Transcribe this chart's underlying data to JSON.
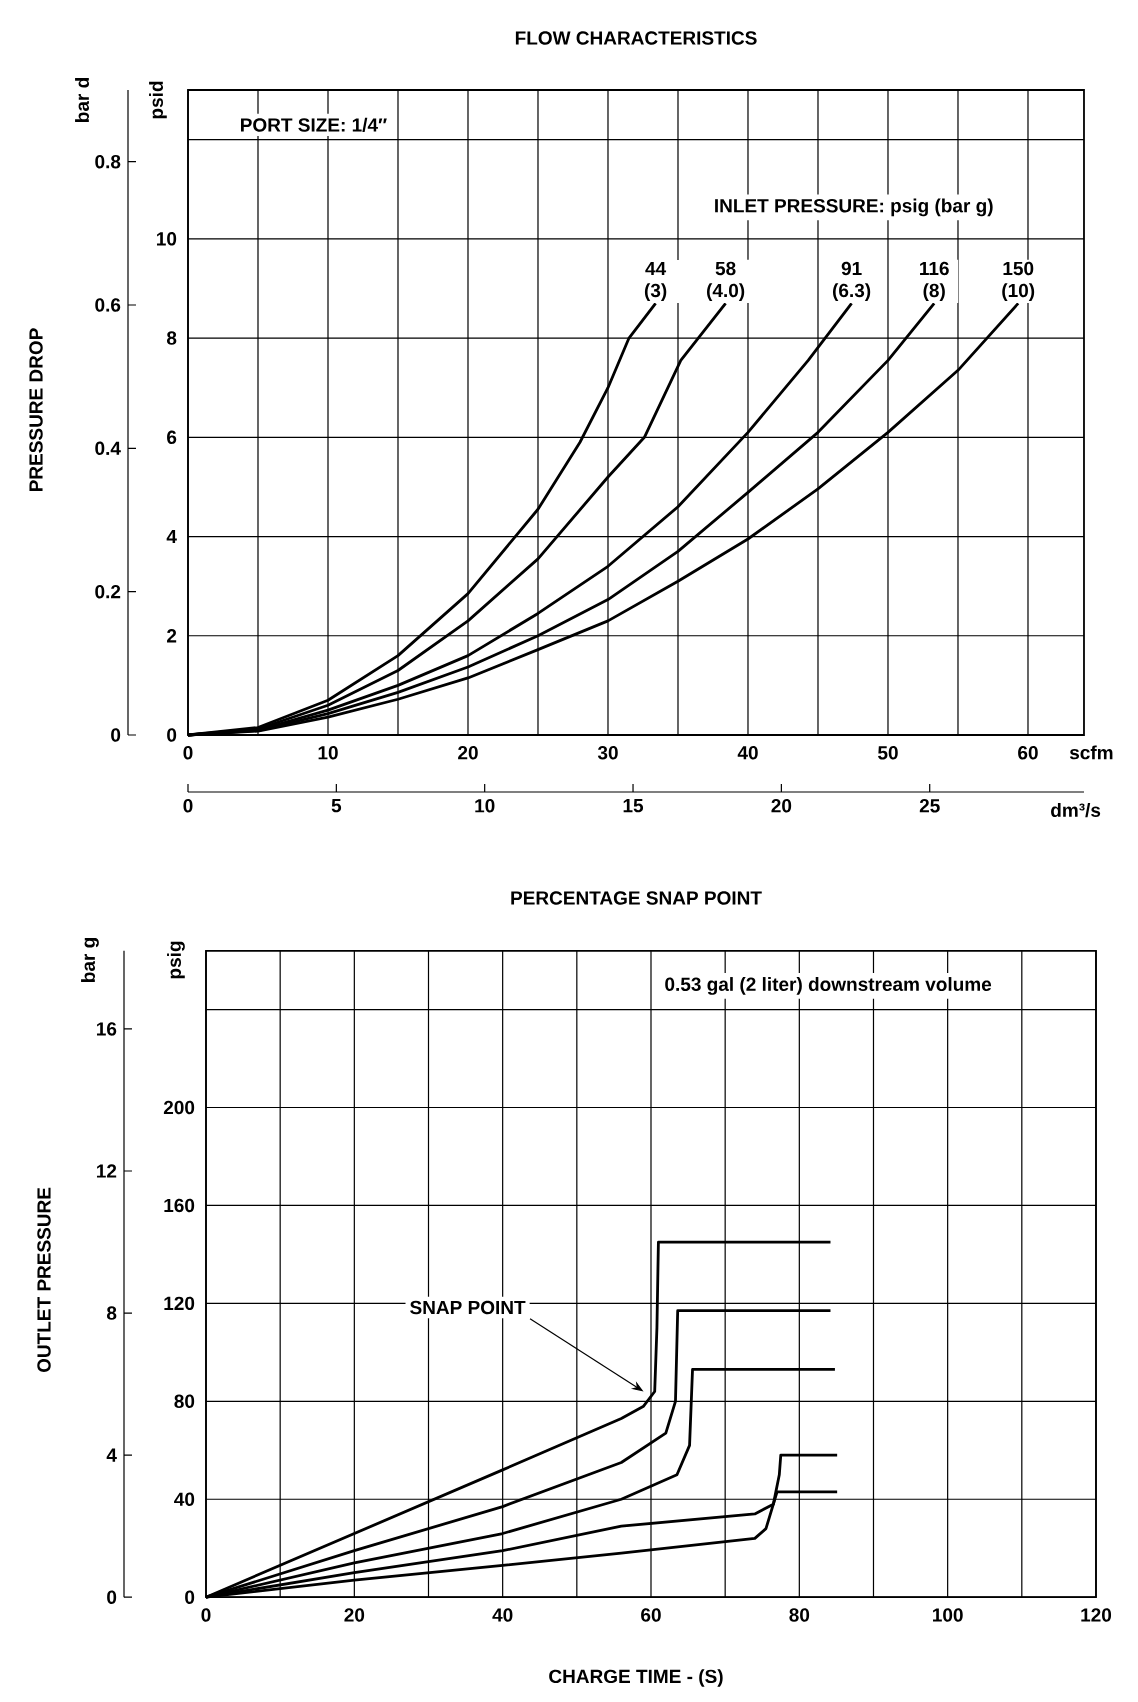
{
  "chart_data": [
    {
      "type": "line",
      "title": "FLOW CHARACTERISTICS",
      "xlabel": "scfm",
      "x2label": "dm³/s",
      "ylabel": "psid",
      "y2label": "bar d",
      "annotations": [
        "PRESSURE DROP",
        "PORT SIZE: 1/4″",
        "INLET PRESSURE: psig (bar g)"
      ],
      "xlim": [
        0,
        64
      ],
      "xticks": [
        0,
        {
          "value": 5,
          "label": null
        },
        10,
        {
          "value": 15,
          "label": null
        },
        20,
        {
          "value": 25,
          "label": null
        },
        30,
        {
          "value": 35,
          "label": null
        },
        40,
        {
          "value": 45,
          "label": null
        },
        50,
        {
          "value": 55,
          "label": null
        },
        60
      ],
      "x2lim": [
        0,
        30.2
      ],
      "x2ticks": [
        0,
        5,
        10,
        15,
        20,
        25
      ],
      "ylim": [
        0,
        13
      ],
      "yticks": [
        0,
        2,
        4,
        6,
        8,
        10,
        {
          "value": 12,
          "label": null
        }
      ],
      "y2lim": [
        0,
        0.9
      ],
      "y2ticks": [
        0,
        0.2,
        0.4,
        0.6,
        0.8
      ],
      "grid": true,
      "series": [
        {
          "name": "44 (3)",
          "color": "#000000",
          "x": [
            0,
            5,
            10,
            15,
            20,
            25,
            28,
            30,
            31.5,
            33.4
          ],
          "values": [
            0,
            0.15,
            0.7,
            1.6,
            2.85,
            4.55,
            5.9,
            7.0,
            8.0,
            8.7
          ]
        },
        {
          "name": "58 (4.0)",
          "color": "#000000",
          "x": [
            0,
            5,
            10,
            15,
            20,
            25,
            30,
            32.6,
            35.2,
            38.4
          ],
          "values": [
            0,
            0.12,
            0.6,
            1.3,
            2.3,
            3.55,
            5.2,
            6.0,
            7.55,
            8.7
          ]
        },
        {
          "name": "91 (6.3)",
          "color": "#000000",
          "x": [
            0,
            5,
            10,
            15,
            20,
            25,
            30,
            35,
            40,
            44.3,
            47.4
          ],
          "values": [
            0,
            0.1,
            0.5,
            1.0,
            1.6,
            2.45,
            3.4,
            4.6,
            6.1,
            7.55,
            8.7
          ]
        },
        {
          "name": "116 (8)",
          "color": "#000000",
          "x": [
            0,
            5,
            10,
            15,
            20,
            25,
            30,
            35,
            40,
            45,
            50,
            53.3
          ],
          "values": [
            0,
            0.09,
            0.43,
            0.86,
            1.37,
            2.0,
            2.73,
            3.7,
            4.89,
            6.1,
            7.55,
            8.7
          ]
        },
        {
          "name": "150 (10)",
          "color": "#000000",
          "x": [
            0,
            5,
            10,
            15,
            20,
            25,
            30,
            35,
            40,
            45,
            50,
            55,
            59.3
          ],
          "values": [
            0,
            0.08,
            0.36,
            0.72,
            1.15,
            1.72,
            2.3,
            3.1,
            3.95,
            4.96,
            6.1,
            7.35,
            8.7
          ]
        }
      ]
    },
    {
      "type": "line",
      "title": "PERCENTAGE SNAP POINT",
      "xlabel": "CHARGE TIME - (S)",
      "ylabel": "psig",
      "y2label": "bar g",
      "annotations": [
        "OUTLET PRESSURE",
        "0.53 gal (2 liter) downstream volume",
        {
          "text": "SNAP POINT",
          "x": 59,
          "y": 84
        }
      ],
      "xlim": [
        0,
        120
      ],
      "xticks": [
        0,
        {
          "value": 10,
          "label": null
        },
        20,
        {
          "value": 30,
          "label": null
        },
        40,
        {
          "value": 50,
          "label": null
        },
        60,
        {
          "value": 70,
          "label": null
        },
        80,
        {
          "value": 90,
          "label": null
        },
        100,
        {
          "value": 110,
          "label": null
        },
        120
      ],
      "ylim": [
        0,
        264
      ],
      "yticks": [
        0,
        40,
        80,
        120,
        160,
        200,
        {
          "value": 240,
          "label": null
        }
      ],
      "y2lim": [
        0,
        18.2
      ],
      "y2ticks": [
        0,
        4,
        8,
        12,
        16
      ],
      "grid": true,
      "series": [
        {
          "color": "#000000",
          "x": [
            0,
            20,
            40,
            56,
            59,
            60.5,
            60.8,
            61,
            84.2
          ],
          "values": [
            0,
            26,
            52,
            73,
            78,
            84,
            110,
            145,
            145
          ]
        },
        {
          "color": "#000000",
          "x": [
            0,
            20,
            40,
            56,
            62,
            63.3,
            63.6,
            84.2
          ],
          "values": [
            0,
            19,
            37,
            55,
            67,
            80,
            117,
            117
          ]
        },
        {
          "color": "#000000",
          "x": [
            0,
            20,
            40,
            56,
            63.5,
            65.2,
            65.6,
            84.8
          ],
          "values": [
            0,
            14,
            26,
            40,
            50,
            62,
            93,
            93
          ]
        },
        {
          "color": "#000000",
          "x": [
            0,
            20,
            40,
            56,
            74,
            76.5,
            77.3,
            77.5,
            85.1
          ],
          "values": [
            0,
            10,
            19,
            29,
            34,
            38,
            50,
            58,
            58
          ]
        },
        {
          "color": "#000000",
          "x": [
            0,
            20,
            40,
            56,
            74,
            75.5,
            76.5,
            77,
            85.1
          ],
          "values": [
            0,
            7,
            13,
            18,
            24,
            28,
            38,
            43,
            43
          ]
        }
      ]
    }
  ]
}
